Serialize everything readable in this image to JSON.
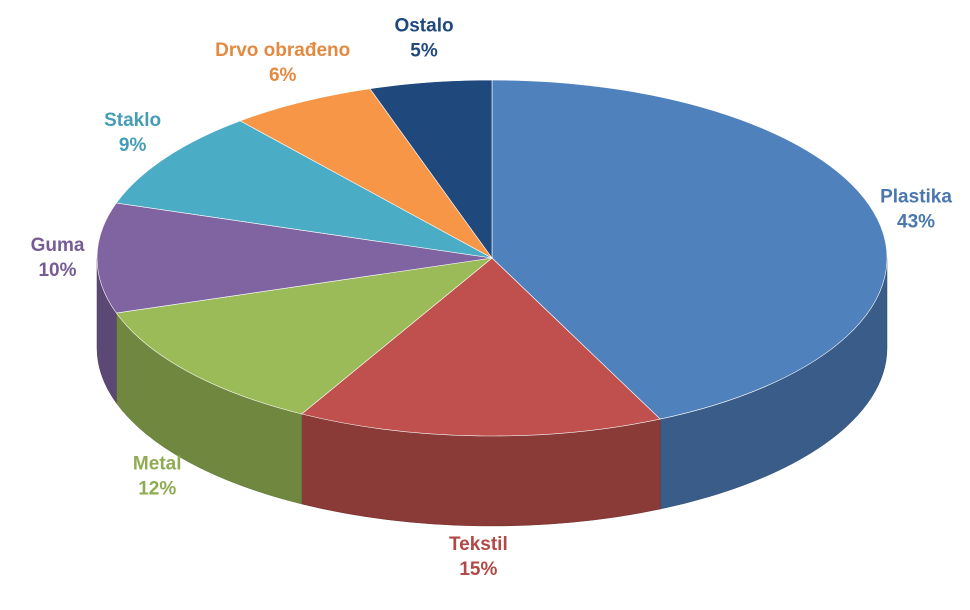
{
  "chart_data": {
    "type": "pie",
    "categories": [
      "Plastika",
      "Tekstil",
      "Metal",
      "Guma",
      "Staklo",
      "Drvo obrađeno",
      "Ostalo"
    ],
    "values": [
      43,
      15,
      12,
      10,
      9,
      6,
      5
    ],
    "value_labels": [
      "43%",
      "15%",
      "12%",
      "10%",
      "9%",
      "6%",
      "5%"
    ],
    "colors": [
      "#4f81bd",
      "#c0504d",
      "#9bbb59",
      "#8064a2",
      "#4bacc6",
      "#f79646",
      "#1f497d"
    ]
  }
}
